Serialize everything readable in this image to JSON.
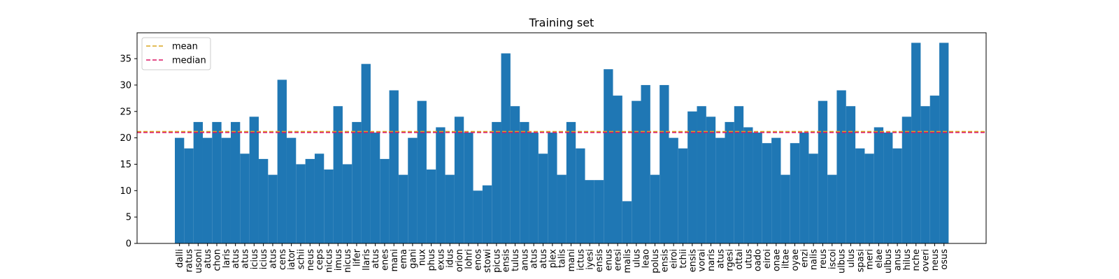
{
  "chart_data": {
    "type": "bar",
    "title": "Training set",
    "categories": [
      "dalli",
      "ratus",
      "usoni",
      "atus",
      "chon",
      "laris",
      "atus",
      "atus",
      "icius",
      "icius",
      "atus",
      "cens",
      "iator",
      "schii",
      "neus",
      "ceps",
      "nicus",
      "imus",
      "nicus",
      "lifer",
      "llaris",
      "atus",
      "enes",
      "mani",
      "ema",
      "gani",
      "nux",
      "phus",
      "exus",
      "idus",
      "orion",
      "lohri",
      "enos",
      "stowi",
      "picus",
      "ensis",
      "tulus",
      "anus",
      "atus",
      "atus",
      "plex",
      "talis",
      "mani",
      "ictus",
      "iyesi",
      "ensis",
      "enus",
      "eresi",
      "malis",
      "ulus",
      "leao",
      "polus",
      "ensis",
      "eiroi",
      "tchii",
      "ensis",
      "vorai",
      "naris",
      "atus",
      "rgesi",
      "ottai",
      "utus",
      "oado",
      "eiroi",
      "onae",
      "iltae",
      "oyae",
      "enzi",
      "nalis",
      "reus",
      "iscoi",
      "ulbus",
      "ulus",
      "spasi",
      "meri",
      "elae",
      "ulbus",
      "anus",
      "hilus",
      "nche",
      "overi",
      "neus",
      "osus"
    ],
    "values": [
      20,
      18,
      23,
      20,
      23,
      20,
      23,
      17,
      24,
      16,
      13,
      31,
      20,
      15,
      16,
      17,
      14,
      26,
      15,
      23,
      34,
      21,
      16,
      29,
      13,
      20,
      27,
      14,
      22,
      13,
      24,
      21,
      10,
      11,
      23,
      36,
      26,
      23,
      21,
      17,
      21,
      13,
      23,
      18,
      12,
      12,
      33,
      28,
      8,
      27,
      30,
      13,
      30,
      20,
      18,
      25,
      26,
      24,
      20,
      23,
      26,
      22,
      21,
      19,
      20,
      13,
      19,
      21,
      17,
      27,
      13,
      29,
      26,
      18,
      17,
      22,
      21,
      18,
      24,
      38,
      26,
      28,
      38
    ],
    "color": "#1f77b4",
    "reference_lines": [
      {
        "name": "mean",
        "value": 21.2,
        "color": "#daa520"
      },
      {
        "name": "median",
        "value": 21,
        "color": "#dc1464"
      }
    ],
    "ylim": [
      0,
      39.9
    ],
    "yticks": [
      0,
      5,
      10,
      15,
      20,
      25,
      30,
      35
    ],
    "legend": "upper left"
  }
}
